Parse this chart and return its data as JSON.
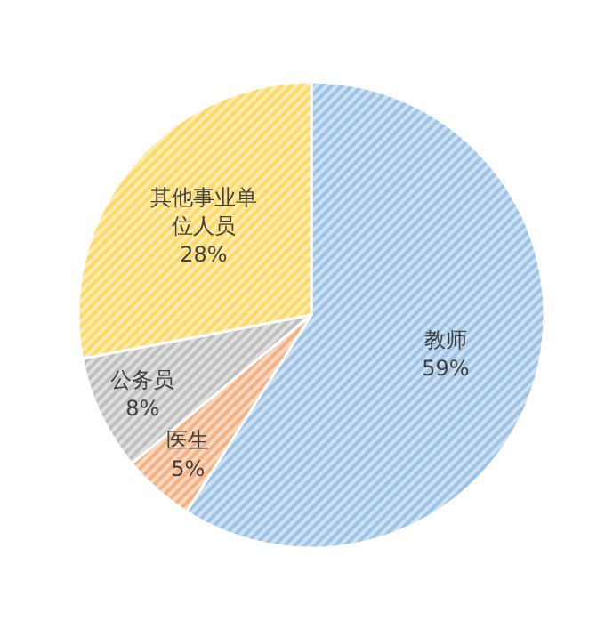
{
  "chart_data": {
    "type": "pie",
    "categories": [
      "教师",
      "医生",
      "公务员",
      "其他事业单位人员"
    ],
    "values": [
      59,
      5,
      8,
      28
    ],
    "colors": [
      "#9dc3e6",
      "#f4b183",
      "#bfbfbf",
      "#ffd966"
    ],
    "value_labels": [
      "59%",
      "5%",
      "8%",
      "28%"
    ]
  }
}
